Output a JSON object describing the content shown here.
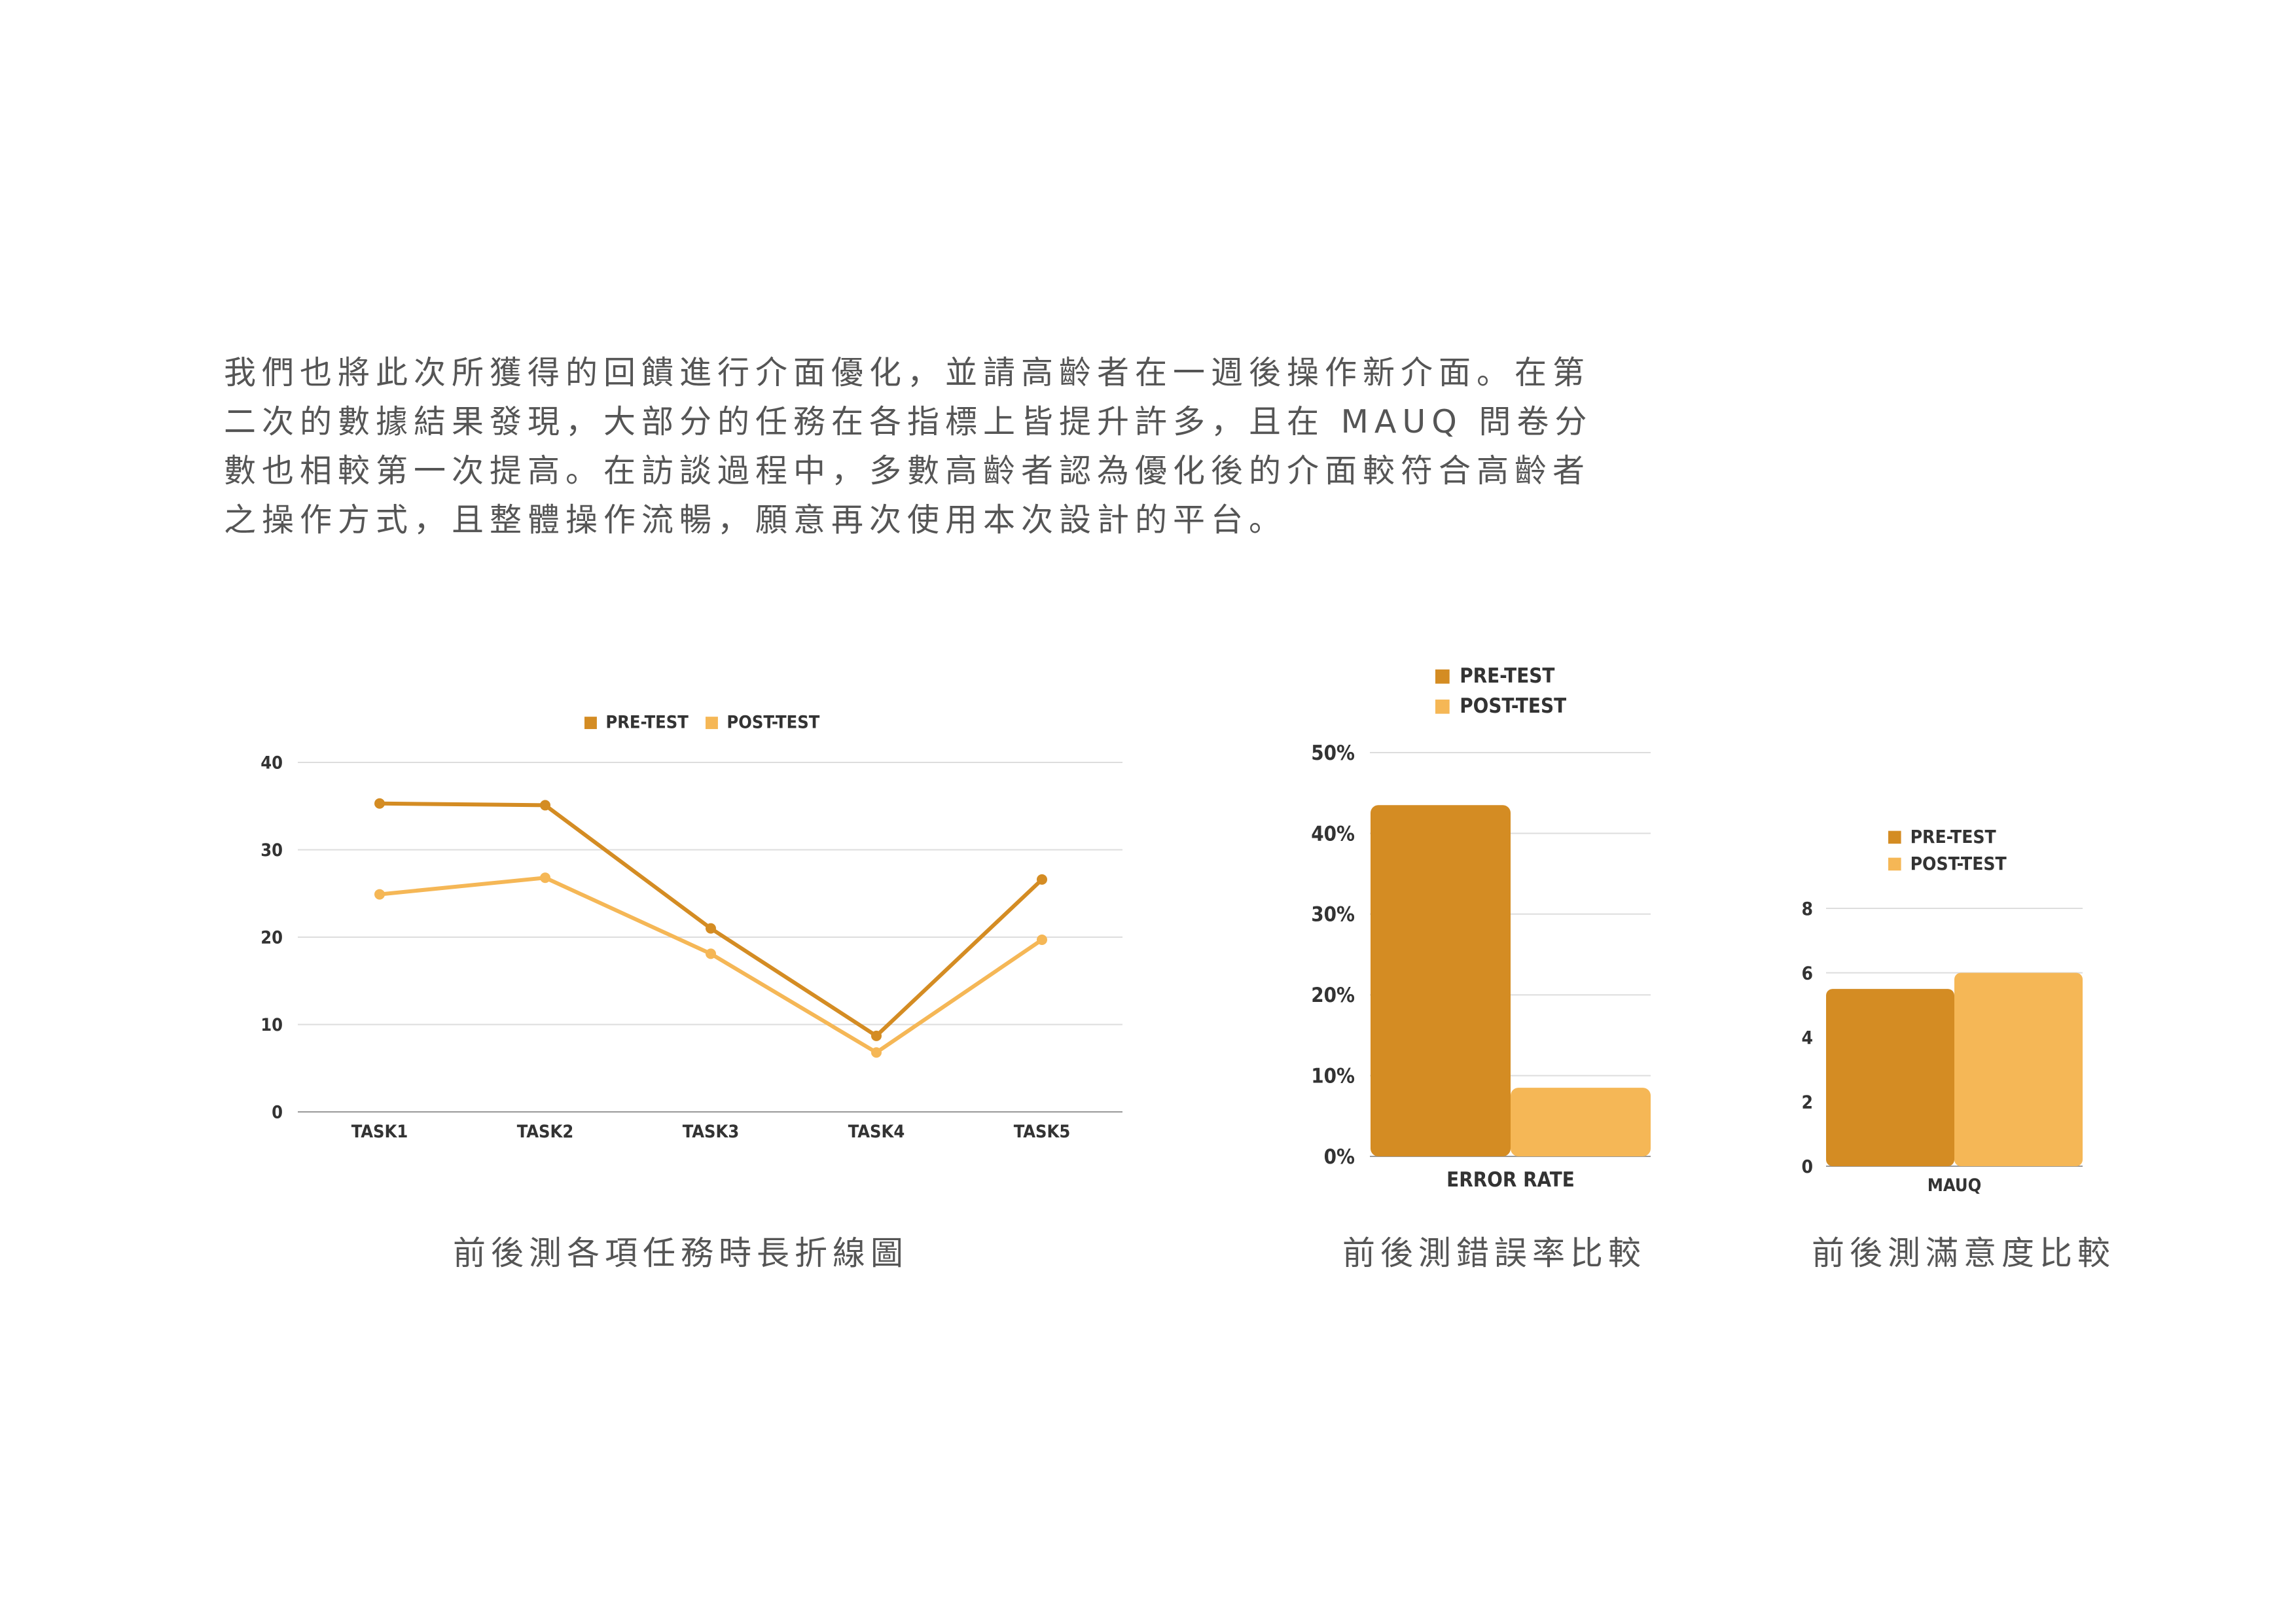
{
  "intro": {
    "lines": [
      "我們也將此次所獲得的回饋進行介面優化，並請高齡者在一週後操作新介面。在第",
      "二次的數據結果發現，大部分的任務在各指標上皆提升許多，且在 MAUQ 問卷分",
      "數也相較第一次提高。在訪談過程中，多數高齡者認為優化後的介面較符合高齡者",
      "之操作方式，且整體操作流暢，願意再次使用本次設計的平台。"
    ]
  },
  "colors": {
    "pre": "#D48C23",
    "post": "#F5B756",
    "grid": "#DDDDDD",
    "axis": "#999999",
    "text": "#555555"
  },
  "captions": {
    "line_chart": "前後測各項任務時長折線圖",
    "error_chart": "前後測錯誤率比較",
    "mauq_chart": "前後測滿意度比較"
  },
  "chart_data": [
    {
      "type": "line",
      "categories": [
        "TASK1",
        "TASK2",
        "TASK3",
        "TASK4",
        "TASK5"
      ],
      "series": [
        {
          "name": "PRE-TEST",
          "values": [
            35.3,
            35.1,
            21.0,
            8.7,
            26.6
          ]
        },
        {
          "name": "POST-TEST",
          "values": [
            24.9,
            26.8,
            18.1,
            6.8,
            19.7
          ]
        }
      ],
      "ylim": [
        0,
        40
      ],
      "yticks": [
        "0",
        "10",
        "20",
        "30",
        "40"
      ],
      "grid": true,
      "legend": "top-center"
    },
    {
      "type": "bar",
      "categories": [
        "ERROR RATE"
      ],
      "series": [
        {
          "name": "PRE-TEST",
          "values": [
            43.5
          ]
        },
        {
          "name": "POST-TEST",
          "values": [
            8.5
          ]
        }
      ],
      "ylim": [
        0,
        50
      ],
      "yticks": [
        "0%",
        "10%",
        "20%",
        "30%",
        "40%",
        "50%"
      ],
      "grid": true,
      "legend": "top-left"
    },
    {
      "type": "bar",
      "categories": [
        "MAUQ"
      ],
      "series": [
        {
          "name": "PRE-TEST",
          "values": [
            5.5
          ]
        },
        {
          "name": "POST-TEST",
          "values": [
            6.0
          ]
        }
      ],
      "ylim": [
        0,
        8
      ],
      "yticks": [
        "0",
        "2",
        "4",
        "6",
        "8"
      ],
      "grid": true,
      "legend": "top-center"
    }
  ]
}
